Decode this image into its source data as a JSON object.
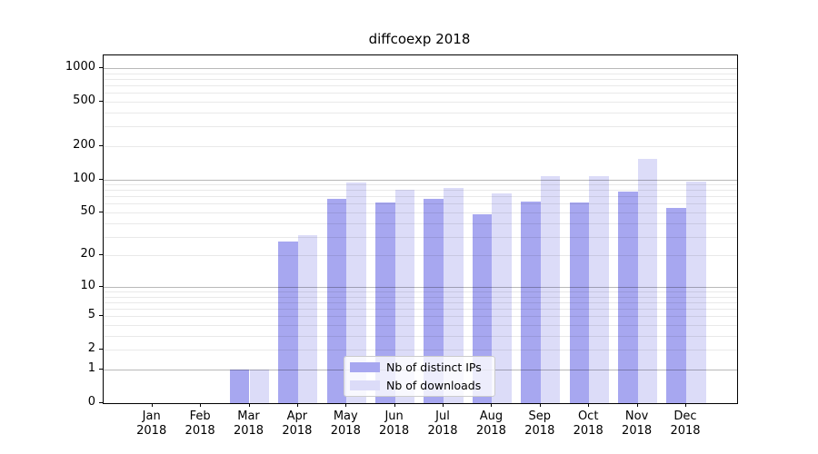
{
  "chart_data": {
    "type": "bar",
    "title": "diffcoexp 2018",
    "categories": [
      {
        "month": "Jan",
        "year": "2018"
      },
      {
        "month": "Feb",
        "year": "2018"
      },
      {
        "month": "Mar",
        "year": "2018"
      },
      {
        "month": "Apr",
        "year": "2018"
      },
      {
        "month": "May",
        "year": "2018"
      },
      {
        "month": "Jun",
        "year": "2018"
      },
      {
        "month": "Jul",
        "year": "2018"
      },
      {
        "month": "Aug",
        "year": "2018"
      },
      {
        "month": "Sep",
        "year": "2018"
      },
      {
        "month": "Oct",
        "year": "2018"
      },
      {
        "month": "Nov",
        "year": "2018"
      },
      {
        "month": "Dec",
        "year": "2018"
      }
    ],
    "series": [
      {
        "name": "Nb of distinct IPs",
        "color": "#a7a7f0",
        "values": [
          0,
          0,
          1,
          27,
          66,
          62,
          66,
          48,
          63,
          62,
          78,
          55
        ]
      },
      {
        "name": "Nb of downloads",
        "color": "#dcdcf8",
        "values": [
          0,
          0,
          1,
          31,
          93,
          80,
          83,
          75,
          106,
          106,
          154,
          96
        ]
      }
    ],
    "y_axis": {
      "scale": "log1p",
      "ticks": [
        0,
        1,
        2,
        5,
        10,
        20,
        50,
        100,
        200,
        500,
        1000
      ],
      "major_gridlines": [
        1,
        10,
        100,
        1000
      ]
    },
    "legend": {
      "position": "lower center",
      "entries": [
        "Nb of distinct IPs",
        "Nb of downloads"
      ]
    },
    "grid": "on (major dark, minor light, drawn over bars)"
  }
}
